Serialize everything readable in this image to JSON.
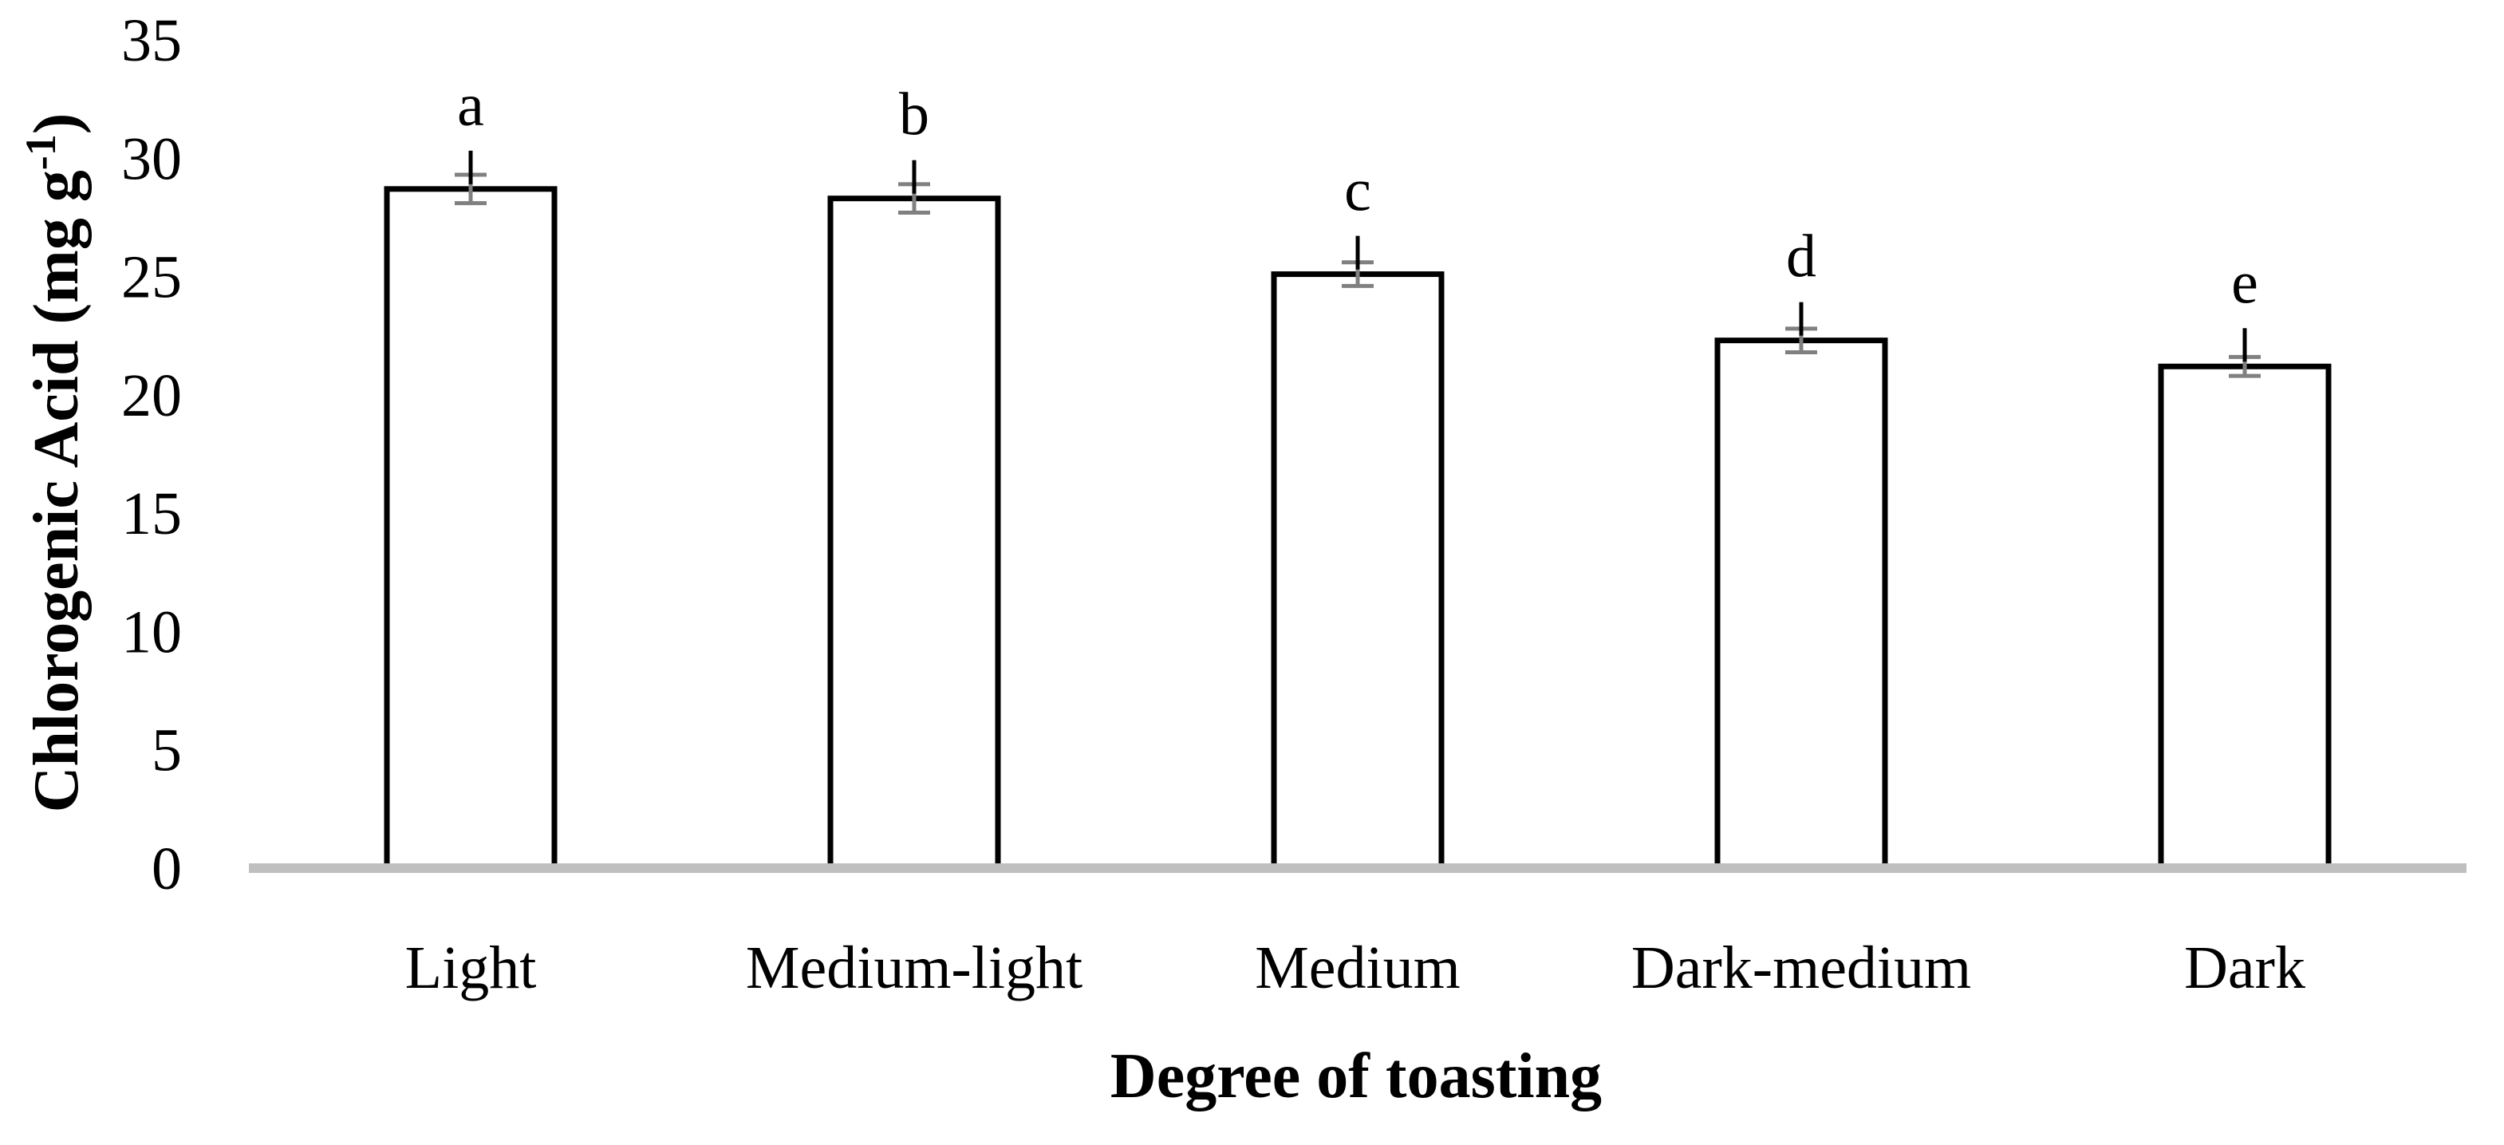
{
  "chart_data": {
    "type": "bar",
    "xlabel": "Degree of toasting",
    "ylabel": {
      "main": "Chlorogenic Acid (mg g",
      "superscript": "-1",
      "close": ")"
    },
    "ylim": [
      0,
      35
    ],
    "yticks": [
      0,
      5,
      10,
      15,
      20,
      25,
      30,
      35
    ],
    "grid": false,
    "legend": "none",
    "categories": [
      "Light",
      "Medium-light",
      "Medium",
      "Dark-medium",
      "Dark"
    ],
    "values": [
      28.7,
      28.3,
      25.1,
      22.3,
      21.2
    ],
    "errors": [
      0.6,
      0.6,
      0.5,
      0.5,
      0.4
    ],
    "significance_letters": [
      "a",
      "b",
      "c",
      "d",
      "e"
    ],
    "bar_fill": "#ffffff",
    "bar_stroke": "#000000",
    "axis_color": "#bfbfbf",
    "error_bar_color": "#808080"
  }
}
